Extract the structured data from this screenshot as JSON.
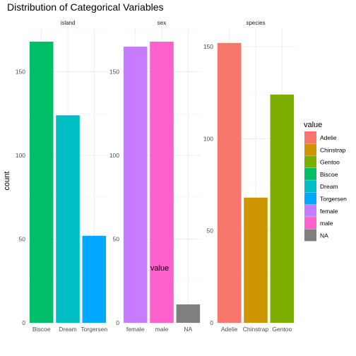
{
  "chart_data": {
    "type": "bar",
    "title": "Distribution of Categorical Variables",
    "xlabel": "value",
    "ylabel": "count",
    "grid": true,
    "legend": {
      "title": "value",
      "placement": "right",
      "entries": [
        {
          "label": "Adelie",
          "color": "#F8766D"
        },
        {
          "label": "Chinstrap",
          "color": "#CD9600"
        },
        {
          "label": "Gentoo",
          "color": "#7CAE00"
        },
        {
          "label": "Biscoe",
          "color": "#00BE67"
        },
        {
          "label": "Dream",
          "color": "#00BFC4"
        },
        {
          "label": "Torgersen",
          "color": "#00A9FF"
        },
        {
          "label": "female",
          "color": "#C77CFF"
        },
        {
          "label": "male",
          "color": "#FF61CC"
        },
        {
          "label": "NA",
          "color": "#7F7F7F"
        }
      ]
    },
    "facets": [
      {
        "name": "island",
        "categories": [
          "Biscoe",
          "Dream",
          "Torgersen"
        ],
        "values": [
          168,
          124,
          52
        ],
        "colors": [
          "#00BE67",
          "#00BFC4",
          "#00A9FF"
        ],
        "ylim": [
          0,
          176
        ],
        "yticks": [
          0,
          50,
          100,
          150
        ]
      },
      {
        "name": "sex",
        "categories": [
          "female",
          "male",
          "NA"
        ],
        "values": [
          165,
          168,
          11
        ],
        "colors": [
          "#C77CFF",
          "#FF61CC",
          "#7F7F7F"
        ],
        "ylim": [
          0,
          176
        ],
        "yticks": [
          0,
          50,
          100,
          150
        ]
      },
      {
        "name": "species",
        "categories": [
          "Adelie",
          "Chinstrap",
          "Gentoo"
        ],
        "values": [
          152,
          68,
          124
        ],
        "colors": [
          "#F8766D",
          "#CD9600",
          "#7CAE00"
        ],
        "ylim": [
          0,
          160
        ],
        "yticks": [
          0,
          50,
          100,
          150
        ]
      }
    ]
  }
}
